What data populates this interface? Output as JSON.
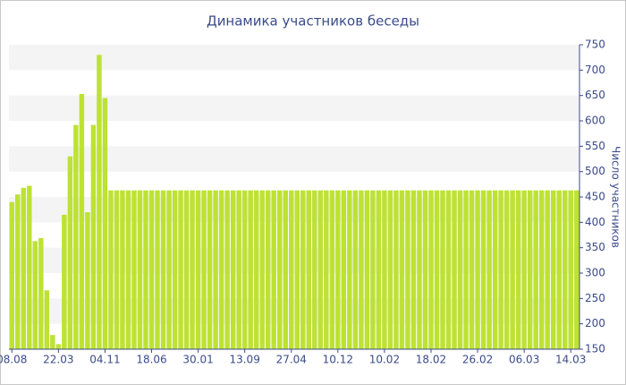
{
  "chart_data": {
    "type": "bar",
    "title": "Динамика участников беседы",
    "y_label": "Число участников",
    "categories": [
      "08.08",
      null,
      null,
      null,
      null,
      null,
      null,
      null,
      "22.03",
      null,
      null,
      null,
      null,
      null,
      null,
      null,
      "04.11",
      null,
      null,
      null,
      null,
      null,
      null,
      null,
      "18.06",
      null,
      null,
      null,
      null,
      null,
      null,
      null,
      "30.01",
      null,
      null,
      null,
      null,
      null,
      null,
      null,
      "13.09",
      null,
      null,
      null,
      null,
      null,
      null,
      null,
      "27.04",
      null,
      null,
      null,
      null,
      null,
      null,
      null,
      "10.12",
      null,
      null,
      null,
      null,
      null,
      null,
      null,
      "10.02",
      null,
      null,
      null,
      null,
      null,
      null,
      null,
      "18.02",
      null,
      null,
      null,
      null,
      null,
      null,
      null,
      "26.02",
      null,
      null,
      null,
      null,
      null,
      null,
      null,
      "06.03",
      null,
      null,
      null,
      null,
      null,
      null,
      null,
      "14.03",
      null
    ],
    "values": [
      440,
      455,
      468,
      472,
      363,
      369,
      266,
      178,
      160,
      415,
      530,
      592,
      653,
      420,
      592,
      730,
      645,
      463,
      463,
      463,
      463,
      463,
      463,
      463,
      463,
      463,
      463,
      463,
      463,
      463,
      463,
      463,
      463,
      463,
      463,
      463,
      463,
      463,
      463,
      463,
      463,
      463,
      463,
      463,
      463,
      463,
      463,
      463,
      463,
      463,
      463,
      463,
      463,
      463,
      463,
      463,
      463,
      463,
      463,
      463,
      463,
      463,
      463,
      463,
      463,
      463,
      463,
      463,
      463,
      463,
      463,
      463,
      463,
      463,
      463,
      463,
      463,
      463,
      463,
      463,
      463,
      463,
      463,
      463,
      463,
      463,
      463,
      463,
      463,
      463,
      463,
      463,
      463,
      463,
      463,
      463,
      463,
      463
    ],
    "color": "#bde234",
    "ylim": [
      150,
      750
    ],
    "yticks": [
      150,
      200,
      250,
      300,
      350,
      400,
      450,
      500,
      550,
      600,
      650,
      700,
      750
    ],
    "grid": true
  }
}
